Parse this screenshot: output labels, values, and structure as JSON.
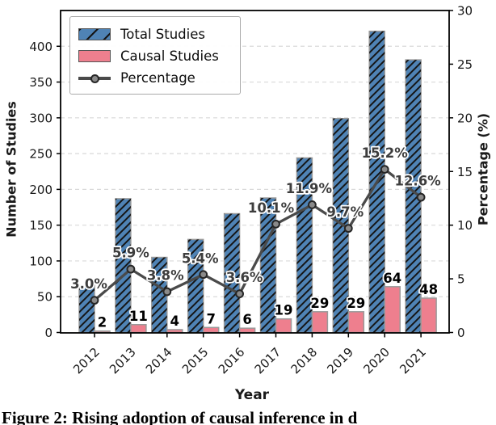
{
  "figure": {
    "caption": "Figure 2: Rising adoption of causal inference in d"
  },
  "chart_data": {
    "type": "bar+line",
    "title": "",
    "xlabel": "Year",
    "ylabel_left": "Number of Studies",
    "ylabel_right": "Percentage (%)",
    "categories": [
      "2012",
      "2013",
      "2014",
      "2015",
      "2016",
      "2017",
      "2018",
      "2019",
      "2020",
      "2021"
    ],
    "series": [
      {
        "name": "Total Studies",
        "type": "bar",
        "axis": "left",
        "color": "#4f83b5",
        "hatch": "/",
        "values": [
          66,
          187,
          105,
          130,
          166,
          188,
          244,
          299,
          421,
          381
        ]
      },
      {
        "name": "Causal Studies",
        "type": "bar",
        "axis": "left",
        "color": "#ee7f8e",
        "values": [
          2,
          11,
          4,
          7,
          6,
          19,
          29,
          29,
          64,
          48
        ],
        "labels": [
          "2",
          "11",
          "4",
          "7",
          "6",
          "19",
          "29",
          "29",
          "64",
          "48"
        ]
      },
      {
        "name": "Percentage",
        "type": "line",
        "axis": "right",
        "color": "#4a4a4a",
        "values": [
          3.0,
          5.9,
          3.8,
          5.4,
          3.6,
          10.1,
          11.9,
          9.7,
          15.2,
          12.6
        ],
        "labels": [
          "3.0%",
          "5.9%",
          "3.8%",
          "5.4%",
          "3.6%",
          "10.1%",
          "11.9%",
          "9.7%",
          "15.2%",
          "12.6%"
        ]
      }
    ],
    "left_axis": {
      "ticks": [
        0,
        50,
        100,
        150,
        200,
        250,
        300,
        350,
        400
      ],
      "range": [
        0,
        450
      ]
    },
    "right_axis": {
      "ticks": [
        0,
        5,
        10,
        15,
        20,
        25,
        30
      ],
      "range": [
        0,
        30
      ]
    },
    "grid": "horizontal-dashed",
    "legend_position": "upper-left",
    "colors": {
      "total_bar": "#4f83b5",
      "causal_bar": "#ee7f8e",
      "line": "#4a4a4a",
      "bar_edge": "#9a9a9a",
      "grid": "#d9d9d9",
      "pct_label": "#3d3d3d",
      "count_label": "#000000"
    }
  }
}
